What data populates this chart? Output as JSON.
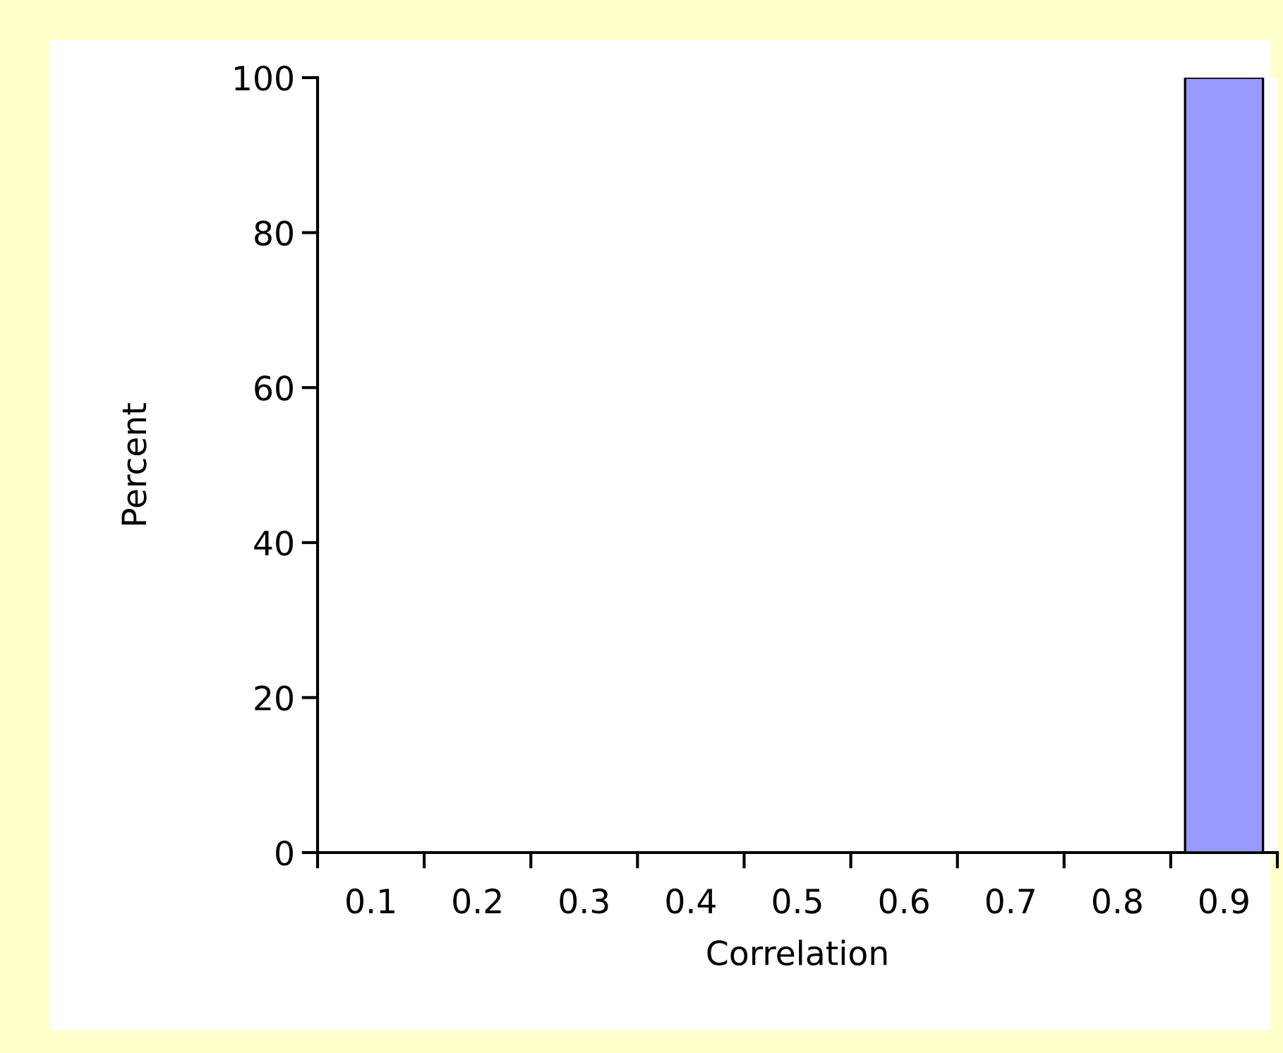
{
  "chart_data": {
    "type": "bar",
    "xlabel": "Correlation",
    "ylabel": "Percent",
    "categories": [
      "0.1",
      "0.2",
      "0.3",
      "0.4",
      "0.5",
      "0.6",
      "0.7",
      "0.8",
      "0.9"
    ],
    "values": [
      0,
      0,
      0,
      0,
      0,
      0,
      0,
      0,
      100
    ],
    "color": "#9999ff",
    "ylim": [
      0,
      100
    ],
    "yticks": [
      0,
      20,
      40,
      60,
      80,
      100
    ],
    "grid": false,
    "legend": false
  }
}
